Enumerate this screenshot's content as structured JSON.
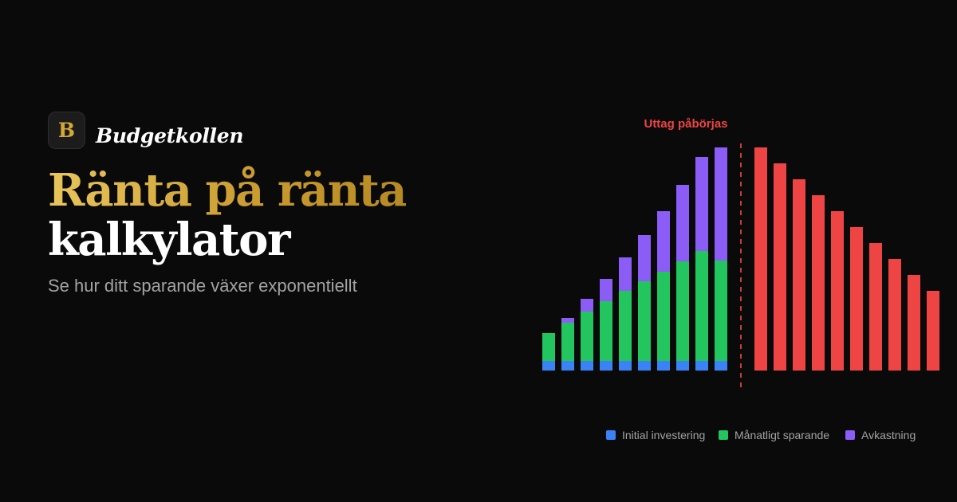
{
  "brand": {
    "logo_letter": "B",
    "name": "Budgetkollen"
  },
  "hero": {
    "title_line1": "Ränta på ränta",
    "title_line2": "kalkylator",
    "subtitle": "Se hur ditt sparande växer exponentiellt"
  },
  "colors": {
    "initial": "#3b82f6",
    "monthly": "#22c55e",
    "returns": "#8b5cf6",
    "withdrawal": "#ef4444",
    "gold": "#d4a838"
  },
  "chart_data": {
    "type": "bar",
    "stacked": true,
    "grid": false,
    "axes_visible": false,
    "annotation": "Uttag påbörjas",
    "growth_series": [
      {
        "name": "Initial investering",
        "color": "#3b82f6",
        "values": [
          12,
          12,
          12,
          12,
          12,
          12,
          12,
          12,
          12,
          12
        ]
      },
      {
        "name": "Månatligt sparande",
        "color": "#22c55e",
        "values": [
          35,
          48,
          62,
          75,
          88,
          100,
          112,
          125,
          138,
          126
        ]
      },
      {
        "name": "Avkastning",
        "color": "#8b5cf6",
        "values": [
          0,
          6,
          16,
          28,
          42,
          58,
          76,
          96,
          118,
          142
        ]
      }
    ],
    "withdrawal_series": {
      "name": "Uttag",
      "color": "#ef4444",
      "values": [
        280,
        260,
        240,
        220,
        200,
        180,
        160,
        140,
        120,
        100
      ]
    },
    "legend": [
      "Initial investering",
      "Månatligt sparande",
      "Avkastning"
    ],
    "legend_position": "bottom-right"
  }
}
